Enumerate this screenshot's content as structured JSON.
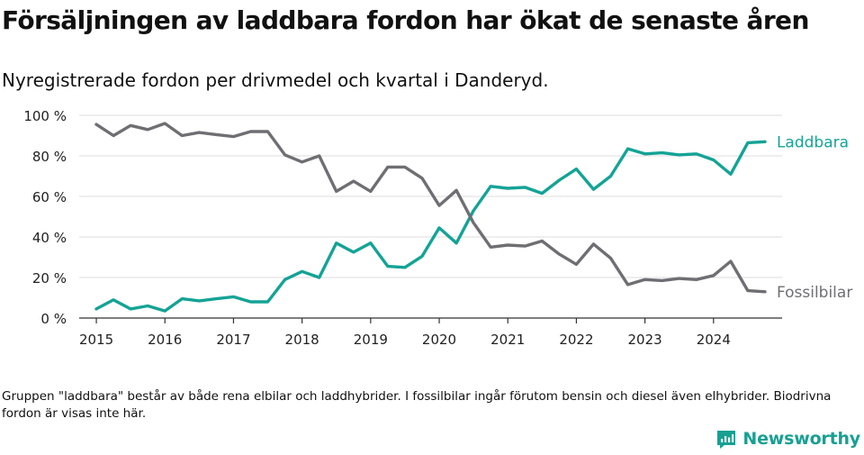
{
  "title": "Försäljningen av laddbara fordon har ökat de senaste åren",
  "subtitle": "Nyregistrerade fordon per drivmedel och kvartal i Danderyd.",
  "note": "Gruppen \"laddbara\" består av både rena elbilar och laddhybrider. I fossilbilar ingår förutom bensin och diesel även elhybrider. Biodrivna fordon är visas inte här.",
  "brand": "Newsworthy",
  "chart_data": {
    "type": "line",
    "title": "Försäljningen av laddbara fordon har ökat de senaste åren",
    "subtitle": "Nyregistrerade fordon per drivmedel och kvartal i Danderyd.",
    "x_unit": "quarter",
    "x_start": 2015,
    "x_step": 0.25,
    "xlim": [
      2014.75,
      2025.0
    ],
    "ylim": [
      0,
      100
    ],
    "y_ticks": [
      0,
      20,
      40,
      60,
      80,
      100
    ],
    "y_tick_labels": [
      "0 %",
      "20 %",
      "40 %",
      "60 %",
      "80 %",
      "100 %"
    ],
    "x_ticks": [
      2015,
      2016,
      2017,
      2018,
      2019,
      2020,
      2021,
      2022,
      2023,
      2024
    ],
    "x_tick_labels": [
      "2015",
      "2016",
      "2017",
      "2018",
      "2019",
      "2020",
      "2021",
      "2022",
      "2023",
      "2024"
    ],
    "grid": true,
    "series": [
      {
        "name": "Laddbara",
        "color": "#14a396",
        "values": [
          4.5,
          9,
          4.5,
          6,
          3.5,
          9.5,
          8.5,
          9.5,
          10.5,
          8,
          8,
          19,
          23,
          20,
          37,
          32.5,
          37,
          25.5,
          25,
          30.5,
          44.5,
          37,
          53,
          65,
          64,
          64.5,
          61.5,
          68,
          73.5,
          63.5,
          70,
          83.5,
          81,
          81.5,
          80.5,
          81,
          78,
          71,
          86.5,
          87
        ]
      },
      {
        "name": "Fossilbilar",
        "color": "#6f6e73",
        "values": [
          95.5,
          90,
          95,
          93,
          96,
          90,
          91.5,
          90.5,
          89.5,
          92,
          92,
          80.5,
          77,
          80,
          62.5,
          67.5,
          62.5,
          74.5,
          74.5,
          69,
          55.5,
          63,
          47,
          35,
          36,
          35.5,
          38,
          31.5,
          26.5,
          36.5,
          29.5,
          16.5,
          19,
          18.5,
          19.5,
          19,
          21,
          28,
          13.5,
          13
        ]
      }
    ]
  }
}
